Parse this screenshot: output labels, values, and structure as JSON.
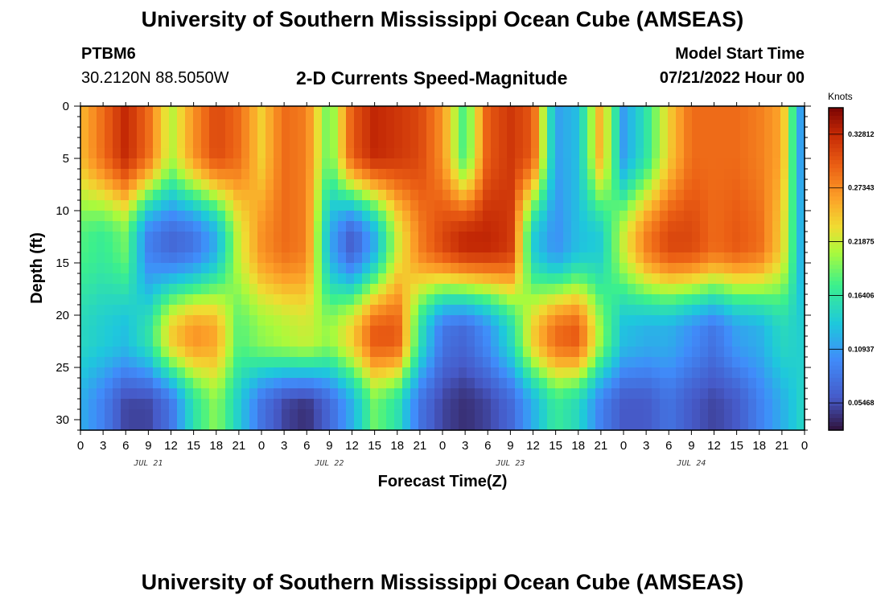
{
  "header": {
    "title": "University of Southern Mississippi Ocean Cube (AMSEAS)",
    "station_id": "PTBM6",
    "coordinates": "30.2120N  88.5050W",
    "subtitle": "2-D Currents Speed-Magnitude",
    "model_start_label": "Model Start Time",
    "model_start_value": "07/21/2022 Hour 00"
  },
  "footer": {
    "title": "University of Southern Mississippi Ocean Cube (AMSEAS)"
  },
  "chart_data": {
    "type": "heatmap",
    "title": "2-D Currents Speed-Magnitude",
    "xlabel": "Forecast Time(Z)",
    "ylabel": "Depth (ft)",
    "x_range_hours": [
      0,
      96
    ],
    "x_step_hours": 3,
    "x_tick_labels": [
      "0",
      "3",
      "6",
      "9",
      "12",
      "15",
      "18",
      "21",
      "0",
      "3",
      "6",
      "9",
      "12",
      "15",
      "18",
      "21",
      "0",
      "3",
      "6",
      "9",
      "12",
      "15",
      "18",
      "21",
      "0",
      "3",
      "6",
      "9",
      "12",
      "15",
      "18",
      "21",
      "0"
    ],
    "day_labels": [
      {
        "label": "JUL 21",
        "hour": 9
      },
      {
        "label": "JUL 22",
        "hour": 33
      },
      {
        "label": "JUL 23",
        "hour": 57
      },
      {
        "label": "JUL 24",
        "hour": 81
      }
    ],
    "y_range": [
      0,
      31
    ],
    "y_ticks": [
      0,
      5,
      10,
      15,
      20,
      25,
      30
    ],
    "y_tick_labels": [
      "0",
      "5",
      "10",
      "15",
      "20",
      "25",
      "30"
    ],
    "y_inverted": true,
    "colorbar": {
      "unit": "Knots",
      "min": 0.027,
      "max": 0.355,
      "ticks": [
        0.05468,
        0.10937,
        0.16406,
        0.21875,
        0.27343,
        0.32812
      ],
      "tick_labels": [
        "0.05468",
        "0.10937",
        "0.16406",
        "0.21875",
        "0.27343",
        "0.32812"
      ]
    },
    "depth_profiles": [
      {
        "name": "surface_0_8ft",
        "depth_from": 0,
        "depth_to": 8,
        "hours": [
          0,
          3,
          6,
          9,
          12,
          15,
          18,
          21,
          24,
          27,
          30,
          33,
          36,
          39,
          42,
          45,
          48,
          51,
          54,
          57,
          60,
          63,
          66,
          69,
          72,
          75,
          78,
          81,
          84,
          87,
          90,
          93,
          96
        ],
        "values": [
          0.25,
          0.29,
          0.33,
          0.29,
          0.21,
          0.27,
          0.31,
          0.29,
          0.24,
          0.29,
          0.28,
          0.18,
          0.3,
          0.33,
          0.32,
          0.31,
          0.27,
          0.17,
          0.3,
          0.32,
          0.3,
          0.11,
          0.13,
          0.26,
          0.11,
          0.16,
          0.24,
          0.29,
          0.29,
          0.29,
          0.28,
          0.26,
          0.08
        ]
      },
      {
        "name": "mid_9_17ft",
        "depth_from": 9,
        "depth_to": 17,
        "hours": [
          0,
          3,
          6,
          9,
          12,
          15,
          18,
          21,
          24,
          27,
          30,
          33,
          36,
          39,
          42,
          45,
          48,
          51,
          54,
          57,
          60,
          63,
          66,
          69,
          72,
          75,
          78,
          81,
          84,
          87,
          90,
          93,
          96
        ],
        "values": [
          0.18,
          0.17,
          0.19,
          0.09,
          0.07,
          0.08,
          0.12,
          0.22,
          0.27,
          0.29,
          0.28,
          0.12,
          0.06,
          0.12,
          0.22,
          0.28,
          0.31,
          0.33,
          0.33,
          0.32,
          0.14,
          0.1,
          0.13,
          0.14,
          0.22,
          0.28,
          0.31,
          0.31,
          0.29,
          0.3,
          0.29,
          0.24,
          0.1
        ]
      },
      {
        "name": "lower_18_26ft",
        "depth_from": 18,
        "depth_to": 26,
        "hours": [
          0,
          3,
          6,
          9,
          12,
          15,
          18,
          21,
          24,
          27,
          30,
          33,
          36,
          39,
          42,
          45,
          48,
          51,
          54,
          57,
          60,
          63,
          66,
          69,
          72,
          75,
          78,
          81,
          84,
          87,
          90,
          93,
          96
        ],
        "values": [
          0.15,
          0.14,
          0.13,
          0.16,
          0.24,
          0.27,
          0.26,
          0.18,
          0.2,
          0.21,
          0.22,
          0.2,
          0.24,
          0.3,
          0.3,
          0.16,
          0.08,
          0.07,
          0.1,
          0.15,
          0.24,
          0.29,
          0.3,
          0.2,
          0.13,
          0.12,
          0.12,
          0.1,
          0.08,
          0.11,
          0.12,
          0.15,
          0.14
        ]
      },
      {
        "name": "bottom_27_31ft",
        "depth_from": 27,
        "depth_to": 31,
        "hours": [
          0,
          3,
          6,
          9,
          12,
          15,
          18,
          21,
          24,
          27,
          30,
          33,
          36,
          39,
          42,
          45,
          48,
          51,
          54,
          57,
          60,
          63,
          66,
          69,
          72,
          75,
          78,
          81,
          84,
          87,
          90,
          93,
          96
        ],
        "values": [
          0.12,
          0.09,
          0.05,
          0.05,
          0.08,
          0.16,
          0.2,
          0.14,
          0.08,
          0.05,
          0.04,
          0.07,
          0.12,
          0.19,
          0.16,
          0.08,
          0.05,
          0.04,
          0.05,
          0.07,
          0.12,
          0.17,
          0.15,
          0.09,
          0.06,
          0.06,
          0.08,
          0.06,
          0.05,
          0.06,
          0.09,
          0.12,
          0.15
        ]
      }
    ]
  }
}
